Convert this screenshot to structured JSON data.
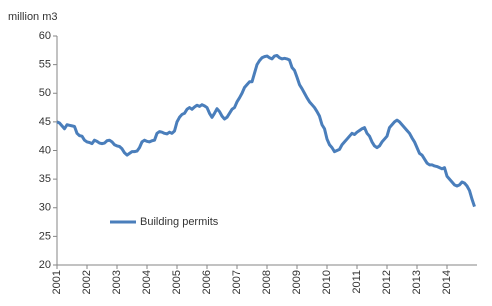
{
  "chart_data": {
    "type": "line",
    "y_label": "million m3",
    "categories": [
      "2001",
      null,
      null,
      null,
      null,
      null,
      null,
      null,
      null,
      null,
      null,
      null,
      "2002",
      null,
      null,
      null,
      null,
      null,
      null,
      null,
      null,
      null,
      null,
      null,
      "2003",
      null,
      null,
      null,
      null,
      null,
      null,
      null,
      null,
      null,
      null,
      null,
      "2004",
      null,
      null,
      null,
      null,
      null,
      null,
      null,
      null,
      null,
      null,
      null,
      "2005",
      null,
      null,
      null,
      null,
      null,
      null,
      null,
      null,
      null,
      null,
      null,
      "2006",
      null,
      null,
      null,
      null,
      null,
      null,
      null,
      null,
      null,
      null,
      null,
      "2007",
      null,
      null,
      null,
      null,
      null,
      null,
      null,
      null,
      null,
      null,
      null,
      "2008",
      null,
      null,
      null,
      null,
      null,
      null,
      null,
      null,
      null,
      null,
      null,
      "2009",
      null,
      null,
      null,
      null,
      null,
      null,
      null,
      null,
      null,
      null,
      null,
      "2010",
      null,
      null,
      null,
      null,
      null,
      null,
      null,
      null,
      null,
      null,
      null,
      "2011",
      null,
      null,
      null,
      null,
      null,
      null,
      null,
      null,
      null,
      null,
      null,
      "2012",
      null,
      null,
      null,
      null,
      null,
      null,
      null,
      null,
      null,
      null,
      null,
      "2013",
      null,
      null,
      null,
      null,
      null,
      null,
      null,
      null,
      null,
      null,
      null,
      "2014",
      null,
      null,
      null,
      null,
      null,
      null,
      null,
      null,
      null,
      null,
      null
    ],
    "series": [
      {
        "name": "Building permits",
        "color": "#4a7ebb",
        "values": [
          45,
          44.8,
          44.3,
          43.8,
          44.5,
          44.4,
          44.3,
          44.2,
          43,
          42.6,
          42.5,
          41.8,
          41.5,
          41.4,
          41.2,
          41.8,
          41.6,
          41.3,
          41.2,
          41.3,
          41.7,
          41.8,
          41.5,
          41,
          40.8,
          40.7,
          40.3,
          39.6,
          39.2,
          39.5,
          39.8,
          39.8,
          39.9,
          40.5,
          41.5,
          41.8,
          41.6,
          41.5,
          41.7,
          41.8,
          43,
          43.3,
          43.2,
          43,
          42.9,
          43.2,
          43,
          43.4,
          45,
          45.8,
          46.3,
          46.5,
          47.2,
          47.5,
          47.2,
          47.6,
          47.9,
          47.7,
          48,
          47.8,
          47.5,
          46.5,
          45.8,
          46.5,
          47.3,
          46.8,
          46,
          45.5,
          45.8,
          46.5,
          47.2,
          47.5,
          48.5,
          49.2,
          50,
          51,
          51.5,
          52,
          52,
          53.5,
          55,
          55.7,
          56.2,
          56.4,
          56.5,
          56.2,
          56,
          56.5,
          56.6,
          56.2,
          56,
          56.1,
          56,
          55.8,
          54.5,
          54,
          52.8,
          51.5,
          50.8,
          50,
          49.2,
          48.5,
          48,
          47.5,
          46.8,
          46,
          44.5,
          43.8,
          42,
          41,
          40.5,
          39.8,
          40,
          40.2,
          41,
          41.5,
          42,
          42.5,
          43,
          42.8,
          43.2,
          43.5,
          43.8,
          44,
          43,
          42.5,
          41.5,
          40.8,
          40.5,
          40.8,
          41.5,
          42,
          42.5,
          44,
          44.5,
          45,
          45.3,
          45,
          44.5,
          44,
          43.5,
          43,
          42.2,
          41.5,
          40.5,
          39.5,
          39.2,
          38.5,
          37.8,
          37.5,
          37.5,
          37.3,
          37.2,
          37,
          36.8,
          37,
          35.5,
          35,
          34.5,
          34,
          33.8,
          34,
          34.5,
          34.3,
          33.8,
          33,
          31.5,
          30.2
        ]
      }
    ],
    "ylim": [
      20,
      60
    ],
    "yticks": [
      20,
      25,
      30,
      35,
      40,
      45,
      50,
      55,
      60
    ],
    "grid": false
  }
}
